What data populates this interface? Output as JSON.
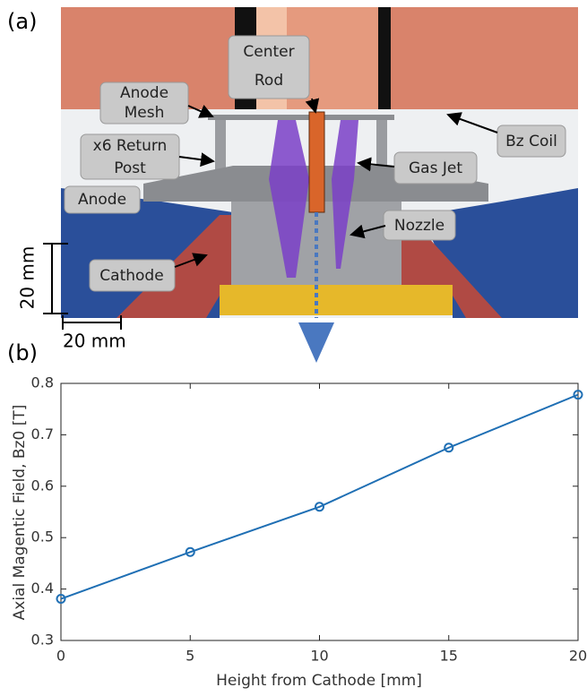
{
  "panel_a": {
    "label": "(a)",
    "annotations": [
      {
        "lines": [
          "Anode",
          "Mesh"
        ]
      },
      {
        "lines": [
          "Center",
          "Rod"
        ]
      },
      {
        "lines": [
          "x6 Return",
          "Post"
        ]
      },
      {
        "lines": [
          "Bz Coil"
        ]
      },
      {
        "lines": [
          "Gas Jet"
        ]
      },
      {
        "lines": [
          "Anode"
        ]
      },
      {
        "lines": [
          "Nozzle"
        ]
      },
      {
        "lines": [
          "Cathode"
        ]
      }
    ],
    "scale_vertical": "20 mm",
    "scale_horizontal": "20 mm"
  },
  "chart_data": {
    "type": "line",
    "label": "(b)",
    "x_label": "Height from Cathode [mm]",
    "y_label": "Axial Magentic Field, Bz0 [T]",
    "x": [
      0,
      5,
      10,
      15,
      20
    ],
    "values": [
      0.381,
      0.472,
      0.56,
      0.675,
      0.778
    ],
    "color": "#1f6fb4",
    "xlim": [
      0,
      20
    ],
    "xticks": [
      0,
      5,
      10,
      15,
      20
    ],
    "ylim": [
      0.3,
      0.8
    ],
    "yticks": [
      0.3,
      0.4,
      0.5,
      0.6,
      0.7,
      0.8
    ],
    "grid": false,
    "marker": "circle"
  }
}
